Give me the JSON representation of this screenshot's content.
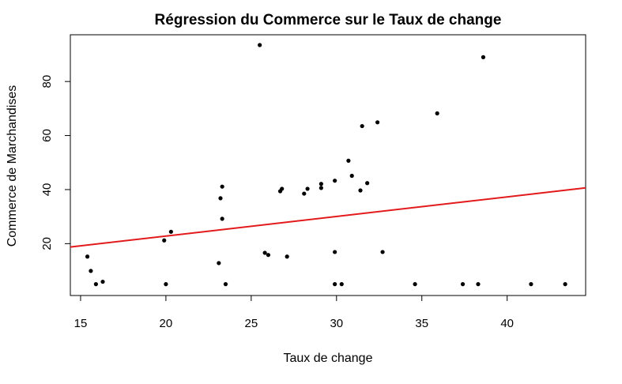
{
  "chart_data": {
    "type": "scatter",
    "title": "Régression du Commerce sur le Taux de change",
    "xlabel": "Taux de change",
    "ylabel": "Commerce de Marchandises",
    "xlim": [
      14.4,
      44.6
    ],
    "ylim": [
      0.8,
      97.3
    ],
    "x_ticks": [
      15,
      20,
      25,
      30,
      35,
      40
    ],
    "y_ticks": [
      20,
      40,
      60,
      80
    ],
    "grid": false,
    "points": [
      {
        "x": 15.4,
        "y": 15.2
      },
      {
        "x": 15.6,
        "y": 9.9
      },
      {
        "x": 15.9,
        "y": 5.0
      },
      {
        "x": 16.3,
        "y": 5.9
      },
      {
        "x": 19.9,
        "y": 21.2
      },
      {
        "x": 20.0,
        "y": 5.0
      },
      {
        "x": 20.3,
        "y": 24.4
      },
      {
        "x": 23.1,
        "y": 12.8
      },
      {
        "x": 23.2,
        "y": 36.8
      },
      {
        "x": 23.3,
        "y": 41.1
      },
      {
        "x": 23.3,
        "y": 29.2
      },
      {
        "x": 23.5,
        "y": 5.0
      },
      {
        "x": 25.5,
        "y": 93.5
      },
      {
        "x": 25.8,
        "y": 16.6
      },
      {
        "x": 26.0,
        "y": 15.8
      },
      {
        "x": 26.7,
        "y": 39.4
      },
      {
        "x": 26.8,
        "y": 40.3
      },
      {
        "x": 27.1,
        "y": 15.2
      },
      {
        "x": 28.1,
        "y": 38.5
      },
      {
        "x": 28.3,
        "y": 40.3
      },
      {
        "x": 29.1,
        "y": 40.6
      },
      {
        "x": 29.1,
        "y": 42.1
      },
      {
        "x": 29.9,
        "y": 43.3
      },
      {
        "x": 29.9,
        "y": 16.9
      },
      {
        "x": 29.9,
        "y": 5.0
      },
      {
        "x": 30.3,
        "y": 5.0
      },
      {
        "x": 30.7,
        "y": 50.7
      },
      {
        "x": 30.9,
        "y": 45.1
      },
      {
        "x": 31.4,
        "y": 39.7
      },
      {
        "x": 31.5,
        "y": 63.5
      },
      {
        "x": 31.8,
        "y": 42.4
      },
      {
        "x": 32.4,
        "y": 64.9
      },
      {
        "x": 32.7,
        "y": 16.9
      },
      {
        "x": 34.6,
        "y": 5.0
      },
      {
        "x": 35.9,
        "y": 68.2
      },
      {
        "x": 37.4,
        "y": 5.0
      },
      {
        "x": 38.3,
        "y": 5.0
      },
      {
        "x": 38.6,
        "y": 89.0
      },
      {
        "x": 41.4,
        "y": 5.0
      },
      {
        "x": 43.4,
        "y": 5.0
      }
    ],
    "regression_line": {
      "intercept": 8.3,
      "slope": 0.725,
      "color": "#e31a1c"
    }
  },
  "colors": {
    "points": "#000000",
    "line": "#e31a1c",
    "frame": "#000000"
  }
}
